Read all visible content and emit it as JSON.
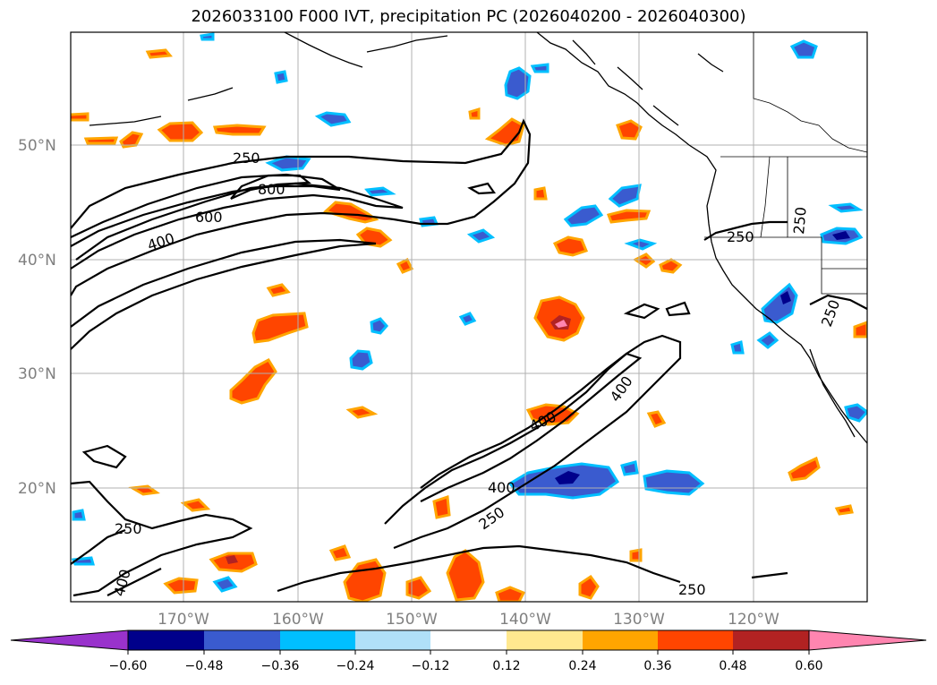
{
  "title": "2026033100 F000 IVT, precipitation PC (2026040200 - 2026040300)",
  "lat_labels": [
    "50°N",
    "40°N",
    "30°N",
    "20°N"
  ],
  "lon_labels": [
    "170°W",
    "160°W",
    "150°W",
    "140°W",
    "130°W",
    "120°W"
  ],
  "contour_labels": [
    "250",
    "800",
    "600",
    "400",
    "250",
    "250",
    "400",
    "400",
    "400",
    "250",
    "250",
    "400",
    "250",
    "250"
  ],
  "colorbar": {
    "colors": [
      "#9932cc",
      "#00008b",
      "#3a5bcf",
      "#00bfff",
      "#b0e0f8",
      "#ffffff",
      "#ffe88f",
      "#ffa500",
      "#ff4500",
      "#b22222",
      "#ff85b0"
    ],
    "ticks": [
      "−0.60",
      "−0.48",
      "−0.36",
      "−0.24",
      "−0.12",
      "0.12",
      "0.24",
      "0.36",
      "0.48",
      "0.60"
    ]
  },
  "colors": {
    "positive": "#ff4500",
    "negative": "#3a5bcf",
    "contour": "#000000",
    "grid": "#b0b0b0"
  }
}
